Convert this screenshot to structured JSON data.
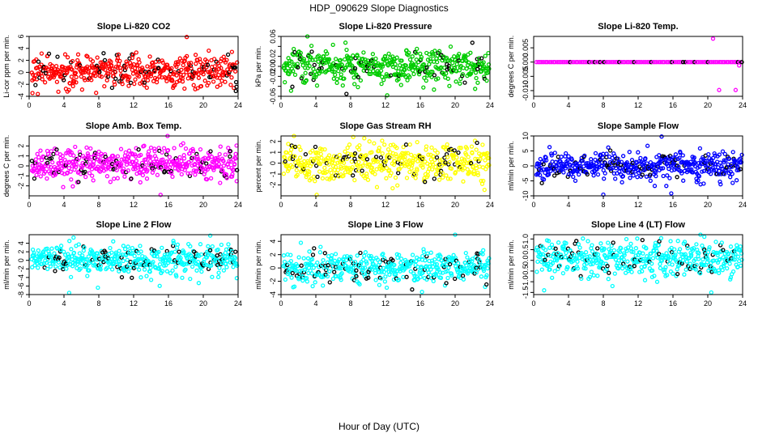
{
  "page": {
    "title": "HDP_090629  Slope Diagnostics",
    "xlabel": "Hour of Day (UTC)"
  },
  "colors": {
    "highlight": "#000000",
    "frame": "#000000",
    "background": "#ffffff"
  },
  "chart_data": [
    {
      "type": "scatter",
      "title": "Slope Li-820 CO2",
      "ylabel": "Li-cor ppm per min.",
      "color": "#ff0000",
      "xlim": [
        0,
        24
      ],
      "ylim": [
        -4,
        6
      ],
      "xticks": [
        0,
        4,
        8,
        12,
        16,
        20,
        24
      ],
      "yticks": [
        -4,
        -2,
        0,
        2,
        4,
        6
      ],
      "ytick_labels": [
        "-4",
        "-2",
        "0",
        "2",
        "4",
        "6"
      ],
      "n_points": 480,
      "center": 0.2,
      "spread": 1.4,
      "outliers": [
        [
          18.1,
          5.9
        ],
        [
          4.4,
          -3.2
        ]
      ]
    },
    {
      "type": "scatter",
      "title": "Slope Li-820 Pressure",
      "ylabel": "kPa per min.",
      "color": "#00cc00",
      "xlim": [
        0,
        24
      ],
      "ylim": [
        -0.06,
        0.06
      ],
      "xticks": [
        0,
        4,
        8,
        12,
        16,
        20,
        24
      ],
      "yticks": [
        -0.06,
        -0.02,
        0.02,
        0.06
      ],
      "ytick_labels": [
        "-0.06",
        "-0.02",
        "0.02",
        "0.06"
      ],
      "minor_yticks": [
        -0.04,
        0.0,
        0.04
      ],
      "minor_ytick_labels": [
        "",
        "0.00",
        ""
      ],
      "n_points": 480,
      "center": 0.0,
      "spread": 0.017,
      "outliers": [
        [
          12.2,
          -0.058
        ],
        [
          22.3,
          -0.045
        ]
      ]
    },
    {
      "type": "scatter",
      "title": "Slope Li-820 Temp.",
      "ylabel": "degrees C per min.",
      "color": "#ff00ff",
      "xlim": [
        0,
        24
      ],
      "ylim": [
        -0.012,
        0.009
      ],
      "xticks": [
        0,
        4,
        8,
        12,
        16,
        20,
        24
      ],
      "yticks": [
        -0.01,
        -0.005,
        0.0,
        0.005
      ],
      "ytick_labels": [
        "-0.010",
        "-0.005",
        "0.000",
        "0.005"
      ],
      "n_points": 110,
      "center": 0.0,
      "spread": 0.0,
      "flat": true,
      "outliers": [
        [
          20.6,
          0.0082
        ],
        [
          21.3,
          -0.0098
        ],
        [
          23.2,
          -0.0098
        ],
        [
          23.6,
          -0.0012
        ]
      ]
    },
    {
      "type": "scatter",
      "title": "Slope Amb. Box Temp.",
      "ylabel": "degrees C per min.",
      "color": "#ff00ff",
      "xlim": [
        0,
        24
      ],
      "ylim": [
        -3,
        3
      ],
      "xticks": [
        0,
        4,
        8,
        12,
        16,
        20,
        24
      ],
      "yticks": [
        -2,
        -1,
        0,
        1,
        2
      ],
      "ytick_labels": [
        "-2",
        "-1",
        "0",
        "1",
        "2"
      ],
      "n_points": 480,
      "center": 0.2,
      "spread": 0.8,
      "outliers": [
        [
          15.9,
          3.0
        ],
        [
          15.1,
          -2.9
        ]
      ]
    },
    {
      "type": "scatter",
      "title": "Slope Gas Stream RH",
      "ylabel": "percent per min.",
      "color": "#ffff00",
      "xlim": [
        0,
        24
      ],
      "ylim": [
        -3,
        2.5
      ],
      "xticks": [
        0,
        4,
        8,
        12,
        16,
        20,
        24
      ],
      "yticks": [
        -2,
        -1,
        0,
        1,
        2
      ],
      "ytick_labels": [
        "-2",
        "-1",
        "0",
        "1",
        "2"
      ],
      "n_points": 480,
      "center": 0.1,
      "spread": 0.9,
      "outliers": [
        [
          8.3,
          2.4
        ],
        [
          4.1,
          -2.9
        ]
      ]
    },
    {
      "type": "scatter",
      "title": "Slope Sample Flow",
      "ylabel": "ml/min per min.",
      "color": "#0000ff",
      "xlim": [
        0,
        24
      ],
      "ylim": [
        -10,
        10
      ],
      "xticks": [
        0,
        4,
        8,
        12,
        16,
        20,
        24
      ],
      "yticks": [
        -10,
        -5,
        0,
        5,
        10
      ],
      "ytick_labels": [
        "-10",
        "-5",
        "0",
        "5",
        "10"
      ],
      "n_points": 480,
      "center": 0.0,
      "spread": 2.3,
      "outliers": [
        [
          14.7,
          9.8
        ],
        [
          8.0,
          -9.6
        ],
        [
          15.8,
          -9.2
        ]
      ]
    },
    {
      "type": "scatter",
      "title": "Slope Line 2 Flow",
      "ylabel": "ml/min per min.",
      "color": "#00ffff",
      "xlim": [
        0,
        24
      ],
      "ylim": [
        -8,
        6
      ],
      "xticks": [
        0,
        4,
        8,
        12,
        16,
        20,
        24
      ],
      "yticks": [
        -8,
        -6,
        -4,
        -2,
        0,
        2,
        4
      ],
      "ytick_labels": [
        "-8",
        "-6",
        "-4",
        "-2",
        "0",
        "2",
        "4"
      ],
      "n_points": 480,
      "center": 0.2,
      "spread": 1.7,
      "outliers": [
        [
          4.6,
          -7.6
        ],
        [
          20.8,
          5.8
        ],
        [
          7.9,
          -6.4
        ]
      ]
    },
    {
      "type": "scatter",
      "title": "Slope Line 3 Flow",
      "ylabel": "ml/min per min.",
      "color": "#00ffff",
      "xlim": [
        0,
        24
      ],
      "ylim": [
        -4,
        5
      ],
      "xticks": [
        0,
        4,
        8,
        12,
        16,
        20,
        24
      ],
      "yticks": [
        -4,
        -2,
        0,
        2,
        4
      ],
      "ytick_labels": [
        "-4",
        "-2",
        "0",
        "2",
        "4"
      ],
      "n_points": 480,
      "center": 0.0,
      "spread": 1.1,
      "outliers": [
        [
          20.0,
          5.0
        ],
        [
          16.2,
          -3.6
        ]
      ]
    },
    {
      "type": "scatter",
      "title": "Slope Line 4 (LT) Flow",
      "ylabel": "ml/min per min.",
      "color": "#00ffff",
      "xlim": [
        0,
        24
      ],
      "ylim": [
        -1.6,
        1.2
      ],
      "xticks": [
        0,
        4,
        8,
        12,
        16,
        20,
        24
      ],
      "yticks": [
        -1.5,
        -1.0,
        -0.5,
        0.0,
        0.5,
        1.0
      ],
      "ytick_labels": [
        "-1.5",
        "-1.0",
        "-0.5",
        "0.0",
        "0.5",
        "1.0"
      ],
      "n_points": 480,
      "center": 0.1,
      "spread": 0.45,
      "outliers": [
        [
          19.6,
          1.1
        ],
        [
          20.4,
          -1.5
        ],
        [
          1.2,
          -1.4
        ]
      ]
    }
  ]
}
